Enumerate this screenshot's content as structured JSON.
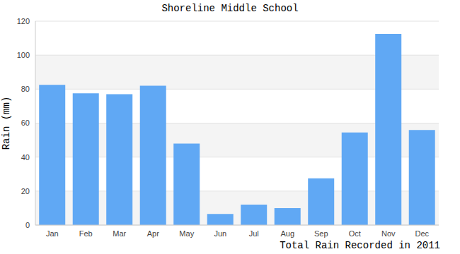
{
  "chart_data": {
    "type": "bar",
    "title": "Shoreline Middle School",
    "y_label": "Rain (mm)",
    "x_label": "Total Rain Recorded in 2011",
    "categories": [
      "Jan",
      "Feb",
      "Mar",
      "Apr",
      "May",
      "Jun",
      "Jul",
      "Aug",
      "Sep",
      "Oct",
      "Nov",
      "Dec"
    ],
    "values": [
      82.5,
      77.5,
      77,
      82,
      48,
      6.5,
      12,
      10,
      27.5,
      54.5,
      112.5,
      56
    ],
    "color": "#60a8f4",
    "ylim": [
      0,
      120
    ],
    "yticks": [
      0,
      20,
      40,
      60,
      80,
      100,
      120
    ],
    "grid": true
  }
}
